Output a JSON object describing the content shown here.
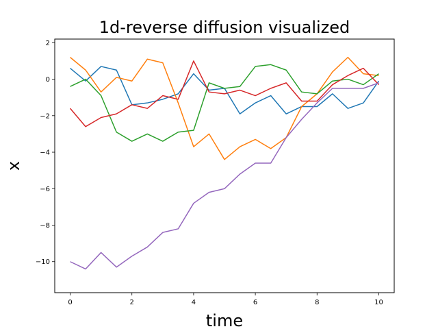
{
  "chart_data": {
    "type": "line",
    "title": "1d-reverse diffusion visualized",
    "xlabel": "time",
    "ylabel": "x",
    "xlim": [
      -0.5,
      10.5
    ],
    "ylim": [
      -11.7,
      2.2
    ],
    "xticks": [
      0,
      2,
      4,
      6,
      8,
      10
    ],
    "yticks": [
      2,
      0,
      -2,
      -4,
      -6,
      -8,
      -10
    ],
    "xtick_labels": [
      "0",
      "2",
      "4",
      "6",
      "8",
      "10"
    ],
    "ytick_labels": [
      "2",
      "0",
      "−2",
      "−4",
      "−6",
      "−8",
      "−10"
    ],
    "grid": false,
    "legend": "none",
    "x": [
      0,
      0.5,
      1,
      1.5,
      2,
      2.5,
      3,
      3.5,
      4,
      4.5,
      5,
      5.5,
      6,
      6.5,
      7,
      7.5,
      8,
      8.5,
      9,
      9.5,
      10
    ],
    "series": [
      {
        "color": "#1f77b4",
        "values": [
          0.6,
          -0.1,
          0.7,
          0.5,
          -1.4,
          -1.3,
          -1.1,
          -0.8,
          0.3,
          -0.6,
          -0.5,
          -1.9,
          -1.3,
          -0.9,
          -1.9,
          -1.5,
          -1.5,
          -0.8,
          -1.6,
          -1.3,
          -0.1
        ]
      },
      {
        "color": "#ff7f0e",
        "values": [
          1.2,
          0.5,
          -0.7,
          0.1,
          -0.1,
          1.1,
          0.9,
          -1.3,
          -3.7,
          -3.0,
          -4.4,
          -3.7,
          -3.3,
          -3.8,
          -3.2,
          -1.5,
          -0.8,
          0.4,
          1.2,
          0.3,
          0.2
        ]
      },
      {
        "color": "#2ca02c",
        "values": [
          -0.4,
          0.0,
          -0.9,
          -2.9,
          -3.4,
          -3.0,
          -3.4,
          -2.9,
          -2.8,
          -0.2,
          -0.5,
          -0.4,
          0.7,
          0.8,
          0.5,
          -0.7,
          -0.8,
          -0.1,
          0.0,
          -0.3,
          0.3
        ]
      },
      {
        "color": "#d62728",
        "values": [
          -1.6,
          -2.6,
          -2.1,
          -1.9,
          -1.4,
          -1.6,
          -0.9,
          -1.1,
          1.0,
          -0.7,
          -0.8,
          -0.6,
          -0.9,
          -0.5,
          -0.2,
          -1.2,
          -1.2,
          -0.3,
          0.2,
          0.6,
          -0.3
        ]
      },
      {
        "color": "#9467bd",
        "values": [
          -10.0,
          -10.4,
          -9.5,
          -10.3,
          -9.7,
          -9.2,
          -8.4,
          -8.2,
          -6.8,
          -6.2,
          -6.0,
          -5.2,
          -4.6,
          -4.6,
          -3.2,
          -2.2,
          -1.3,
          -0.5,
          -0.5,
          -0.5,
          -0.2
        ]
      }
    ]
  }
}
